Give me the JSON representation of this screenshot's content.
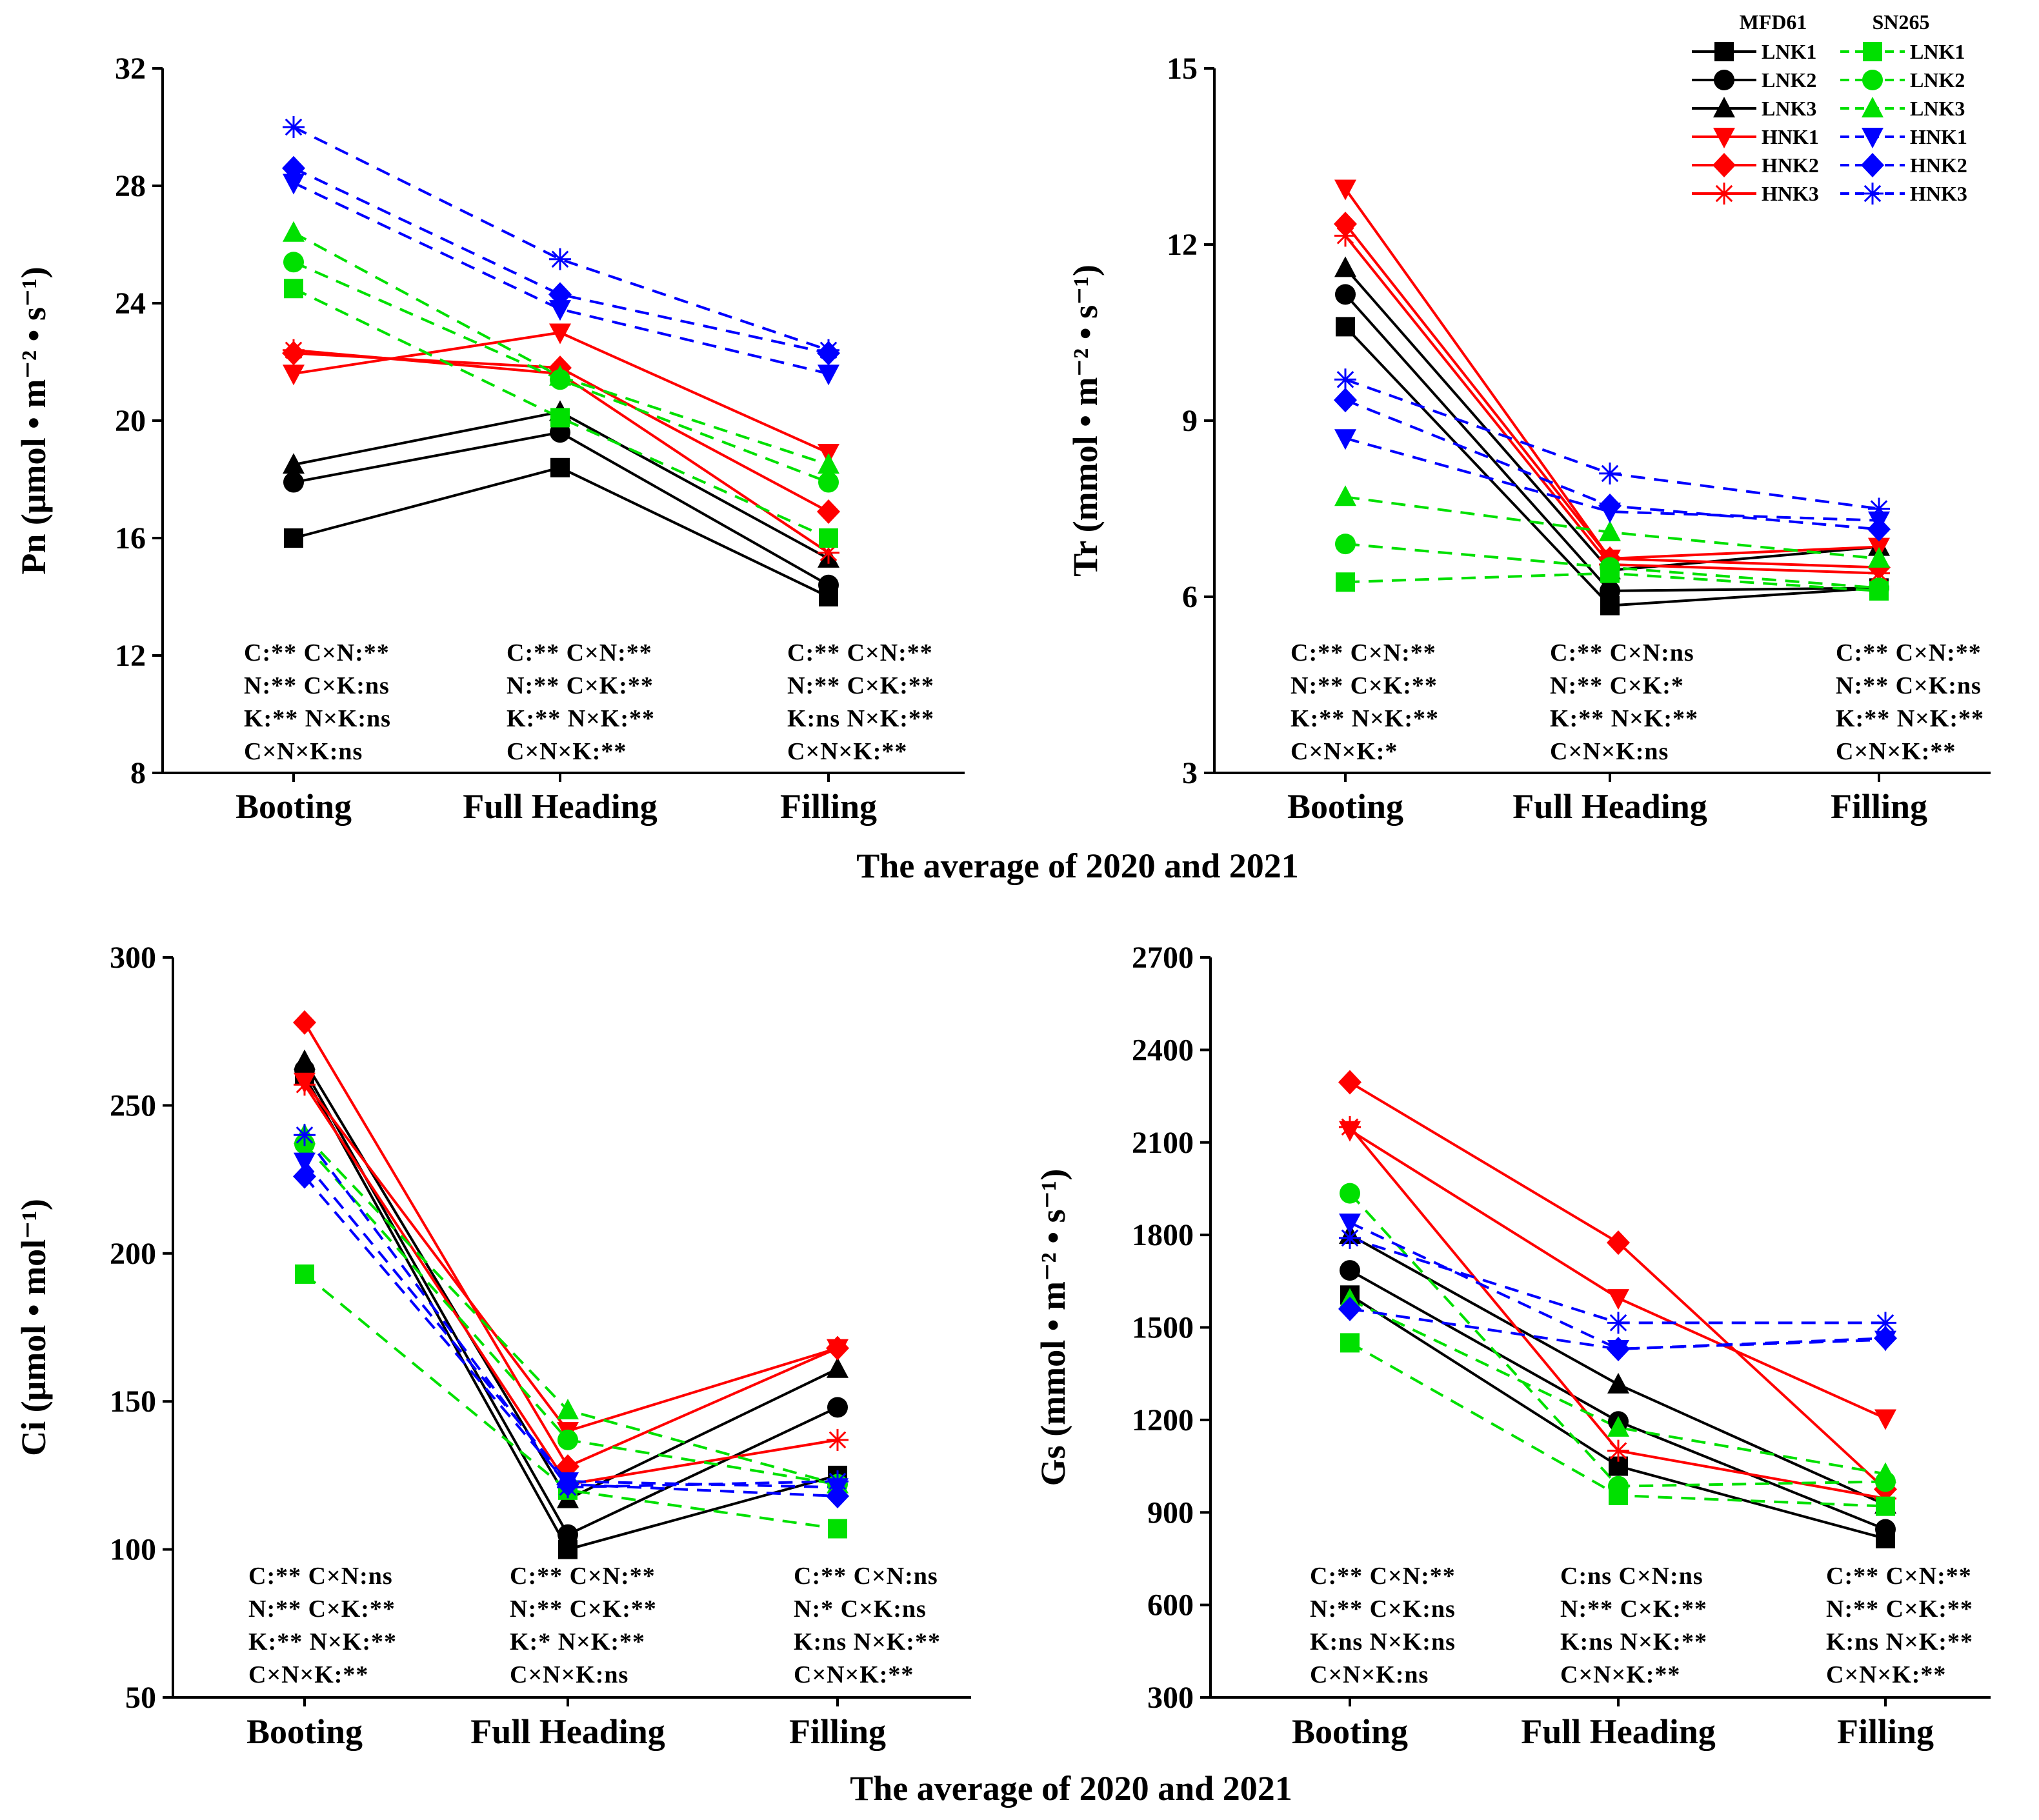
{
  "figure": {
    "common_xlabel_top": "The average of 2020 and 2021",
    "common_xlabel_bottom": "The average of 2020 and 2021"
  },
  "colors": {
    "MFD61_low": "#000000",
    "MFD61_high": "#ff0000",
    "SN265_low": "#00e000",
    "SN265_high": "#0000ff"
  },
  "legend": {
    "group_headers": [
      "MFD61",
      "SN265"
    ],
    "rows": [
      {
        "label_left": "LNK1",
        "label_right": "LNK1",
        "marker": "square"
      },
      {
        "label_left": "LNK2",
        "label_right": "LNK2",
        "marker": "circle"
      },
      {
        "label_left": "LNK3",
        "label_right": "LNK3",
        "marker": "triangle-up"
      },
      {
        "label_left": "HNK1",
        "label_right": "HNK1",
        "marker": "triangle-down"
      },
      {
        "label_left": "HNK2",
        "label_right": "HNK2",
        "marker": "diamond"
      },
      {
        "label_left": "HNK3",
        "label_right": "HNK3",
        "marker": "asterisk"
      }
    ]
  },
  "chart_data": [
    {
      "type": "line",
      "id": "pn",
      "ylabel": "Pn (μmol • m⁻² • s⁻¹)",
      "ylim": [
        8,
        32
      ],
      "yticks": [
        "8",
        "12",
        "16",
        "20",
        "24",
        "28",
        "32"
      ],
      "categories": [
        "Booting",
        "Full Heading",
        "Filling"
      ],
      "series": [
        {
          "name": "MFD61 LNK1",
          "values": [
            16.0,
            18.4,
            14.0
          ]
        },
        {
          "name": "MFD61 LNK2",
          "values": [
            17.9,
            19.6,
            14.4
          ]
        },
        {
          "name": "MFD61 LNK3",
          "values": [
            18.5,
            20.3,
            15.3
          ]
        },
        {
          "name": "MFD61 HNK1",
          "values": [
            21.6,
            23.0,
            18.9
          ]
        },
        {
          "name": "MFD61 HNK2",
          "values": [
            22.3,
            21.8,
            16.9
          ]
        },
        {
          "name": "MFD61 HNK3",
          "values": [
            22.4,
            21.6,
            15.5
          ]
        },
        {
          "name": "SN265 LNK1",
          "values": [
            24.5,
            20.1,
            16.0
          ]
        },
        {
          "name": "SN265 LNK2",
          "values": [
            25.4,
            21.4,
            17.9
          ]
        },
        {
          "name": "SN265 LNK3",
          "values": [
            26.4,
            21.5,
            18.5
          ]
        },
        {
          "name": "SN265 HNK1",
          "values": [
            28.1,
            23.8,
            21.6
          ]
        },
        {
          "name": "SN265 HNK2",
          "values": [
            28.6,
            24.3,
            22.3
          ]
        },
        {
          "name": "SN265 HNK3",
          "values": [
            30.0,
            25.5,
            22.4
          ]
        }
      ],
      "annotations": [
        [
          "C:**  C×N:**",
          "N:**  C×K:ns",
          "K:**  N×K:ns",
          "C×N×K:ns"
        ],
        [
          "C:**  C×N:**",
          "N:**  C×K:**",
          "K:**  N×K:**",
          "C×N×K:**"
        ],
        [
          "C:**  C×N:**",
          "N:**  C×K:**",
          "K:ns  N×K:**",
          "C×N×K:**"
        ]
      ]
    },
    {
      "type": "line",
      "id": "tr",
      "ylabel": "Tr (mmol • m⁻² • s⁻¹)",
      "ylim": [
        3,
        15
      ],
      "yticks": [
        "3",
        "6",
        "9",
        "12",
        "15"
      ],
      "categories": [
        "Booting",
        "Full Heading",
        "Filling"
      ],
      "series": [
        {
          "name": "MFD61 LNK1",
          "values": [
            10.6,
            5.85,
            6.15
          ]
        },
        {
          "name": "MFD61 LNK2",
          "values": [
            11.15,
            6.1,
            6.15
          ]
        },
        {
          "name": "MFD61 LNK3",
          "values": [
            11.6,
            6.45,
            6.85
          ]
        },
        {
          "name": "MFD61 HNK1",
          "values": [
            12.95,
            6.65,
            6.85
          ]
        },
        {
          "name": "MFD61 HNK2",
          "values": [
            12.35,
            6.65,
            6.5
          ]
        },
        {
          "name": "MFD61 HNK3",
          "values": [
            12.15,
            6.55,
            6.4
          ]
        },
        {
          "name": "SN265 LNK1",
          "values": [
            6.25,
            6.4,
            6.1
          ]
        },
        {
          "name": "SN265 LNK2",
          "values": [
            6.9,
            6.5,
            6.15
          ]
        },
        {
          "name": "SN265 LNK3",
          "values": [
            7.7,
            7.1,
            6.65
          ]
        },
        {
          "name": "SN265 HNK1",
          "values": [
            8.7,
            7.45,
            7.3
          ]
        },
        {
          "name": "SN265 HNK2",
          "values": [
            9.35,
            7.55,
            7.15
          ]
        },
        {
          "name": "SN265 HNK3",
          "values": [
            9.7,
            8.1,
            7.5
          ]
        }
      ],
      "annotations": [
        [
          "C:**  C×N:**",
          "N:**  C×K:**",
          "K:**  N×K:**",
          "C×N×K:*"
        ],
        [
          "C:**  C×N:ns",
          "N:**  C×K:*",
          "K:**  N×K:**",
          "C×N×K:ns"
        ],
        [
          "C:**  C×N:**",
          "N:**  C×K:ns",
          "K:**  N×K:**",
          "C×N×K:**"
        ]
      ]
    },
    {
      "type": "line",
      "id": "ci",
      "ylabel": "Ci (μmol • mol⁻¹)",
      "ylim": [
        50,
        300
      ],
      "yticks": [
        "50",
        "100",
        "150",
        "200",
        "250",
        "300"
      ],
      "categories": [
        "Booting",
        "Full Heading",
        "Filling"
      ],
      "series": [
        {
          "name": "MFD61 LNK1",
          "values": [
            260,
            100,
            125
          ]
        },
        {
          "name": "MFD61 LNK2",
          "values": [
            262,
            105,
            148
          ]
        },
        {
          "name": "MFD61 LNK3",
          "values": [
            265,
            117,
            161
          ]
        },
        {
          "name": "MFD61 HNK1",
          "values": [
            258,
            140,
            168
          ]
        },
        {
          "name": "MFD61 HNK2",
          "values": [
            278,
            128,
            168
          ]
        },
        {
          "name": "MFD61 HNK3",
          "values": [
            257,
            122,
            137
          ]
        },
        {
          "name": "SN265 LNK1",
          "values": [
            193,
            120,
            107
          ]
        },
        {
          "name": "SN265 LNK2",
          "values": [
            237,
            137,
            122
          ]
        },
        {
          "name": "SN265 LNK3",
          "values": [
            240,
            147,
            122
          ]
        },
        {
          "name": "SN265 HNK1",
          "values": [
            231,
            123,
            121
          ]
        },
        {
          "name": "SN265 HNK2",
          "values": [
            226,
            122,
            118
          ]
        },
        {
          "name": "SN265 HNK3",
          "values": [
            240,
            121,
            123
          ]
        }
      ],
      "annotations": [
        [
          "C:**  C×N:ns",
          "N:**  C×K:**",
          "K:**  N×K:**",
          "C×N×K:**"
        ],
        [
          "C:**  C×N:**",
          "N:**  C×K:**",
          "K:*   N×K:**",
          "C×N×K:ns"
        ],
        [
          "C:**  C×N:ns",
          "N:*   C×K:ns",
          "K:ns  N×K:**",
          "C×N×K:**"
        ]
      ]
    },
    {
      "type": "line",
      "id": "gs",
      "ylabel": "Gs (mmol • m⁻² • s⁻¹)",
      "ylim": [
        300,
        2700
      ],
      "yticks": [
        "300",
        "600",
        "900",
        "1200",
        "1500",
        "1800",
        "2100",
        "2400",
        "2700"
      ],
      "categories": [
        "Booting",
        "Full Heading",
        "Filling"
      ],
      "series": [
        {
          "name": "MFD61 LNK1",
          "values": [
            1605,
            1050,
            815
          ]
        },
        {
          "name": "MFD61 LNK2",
          "values": [
            1685,
            1195,
            845
          ]
        },
        {
          "name": "MFD61 LNK3",
          "values": [
            1800,
            1315,
            925
          ]
        },
        {
          "name": "MFD61 HNK1",
          "values": [
            2140,
            1595,
            1205
          ]
        },
        {
          "name": "MFD61 HNK2",
          "values": [
            2295,
            1775,
            975
          ]
        },
        {
          "name": "MFD61 HNK3",
          "values": [
            2150,
            1100,
            945
          ]
        },
        {
          "name": "SN265 LNK1",
          "values": [
            1450,
            955,
            920
          ]
        },
        {
          "name": "SN265 LNK2",
          "values": [
            1935,
            985,
            1000
          ]
        },
        {
          "name": "SN265 LNK3",
          "values": [
            1590,
            1175,
            1025
          ]
        },
        {
          "name": "SN265 HNK1",
          "values": [
            1840,
            1430,
            1460
          ]
        },
        {
          "name": "SN265 HNK2",
          "values": [
            1560,
            1430,
            1465
          ]
        },
        {
          "name": "SN265 HNK3",
          "values": [
            1790,
            1515,
            1515
          ]
        }
      ],
      "annotations": [
        [
          "C:**  C×N:**",
          "N:**  C×K:ns",
          "K:ns  N×K:ns",
          "C×N×K:ns"
        ],
        [
          "C:ns  C×N:ns",
          "N:**  C×K:**",
          "K:ns  N×K:**",
          "C×N×K:**"
        ],
        [
          "C:**  C×N:**",
          "N:**  C×K:**",
          "K:ns  N×K:**",
          "C×N×K:**"
        ]
      ]
    }
  ]
}
